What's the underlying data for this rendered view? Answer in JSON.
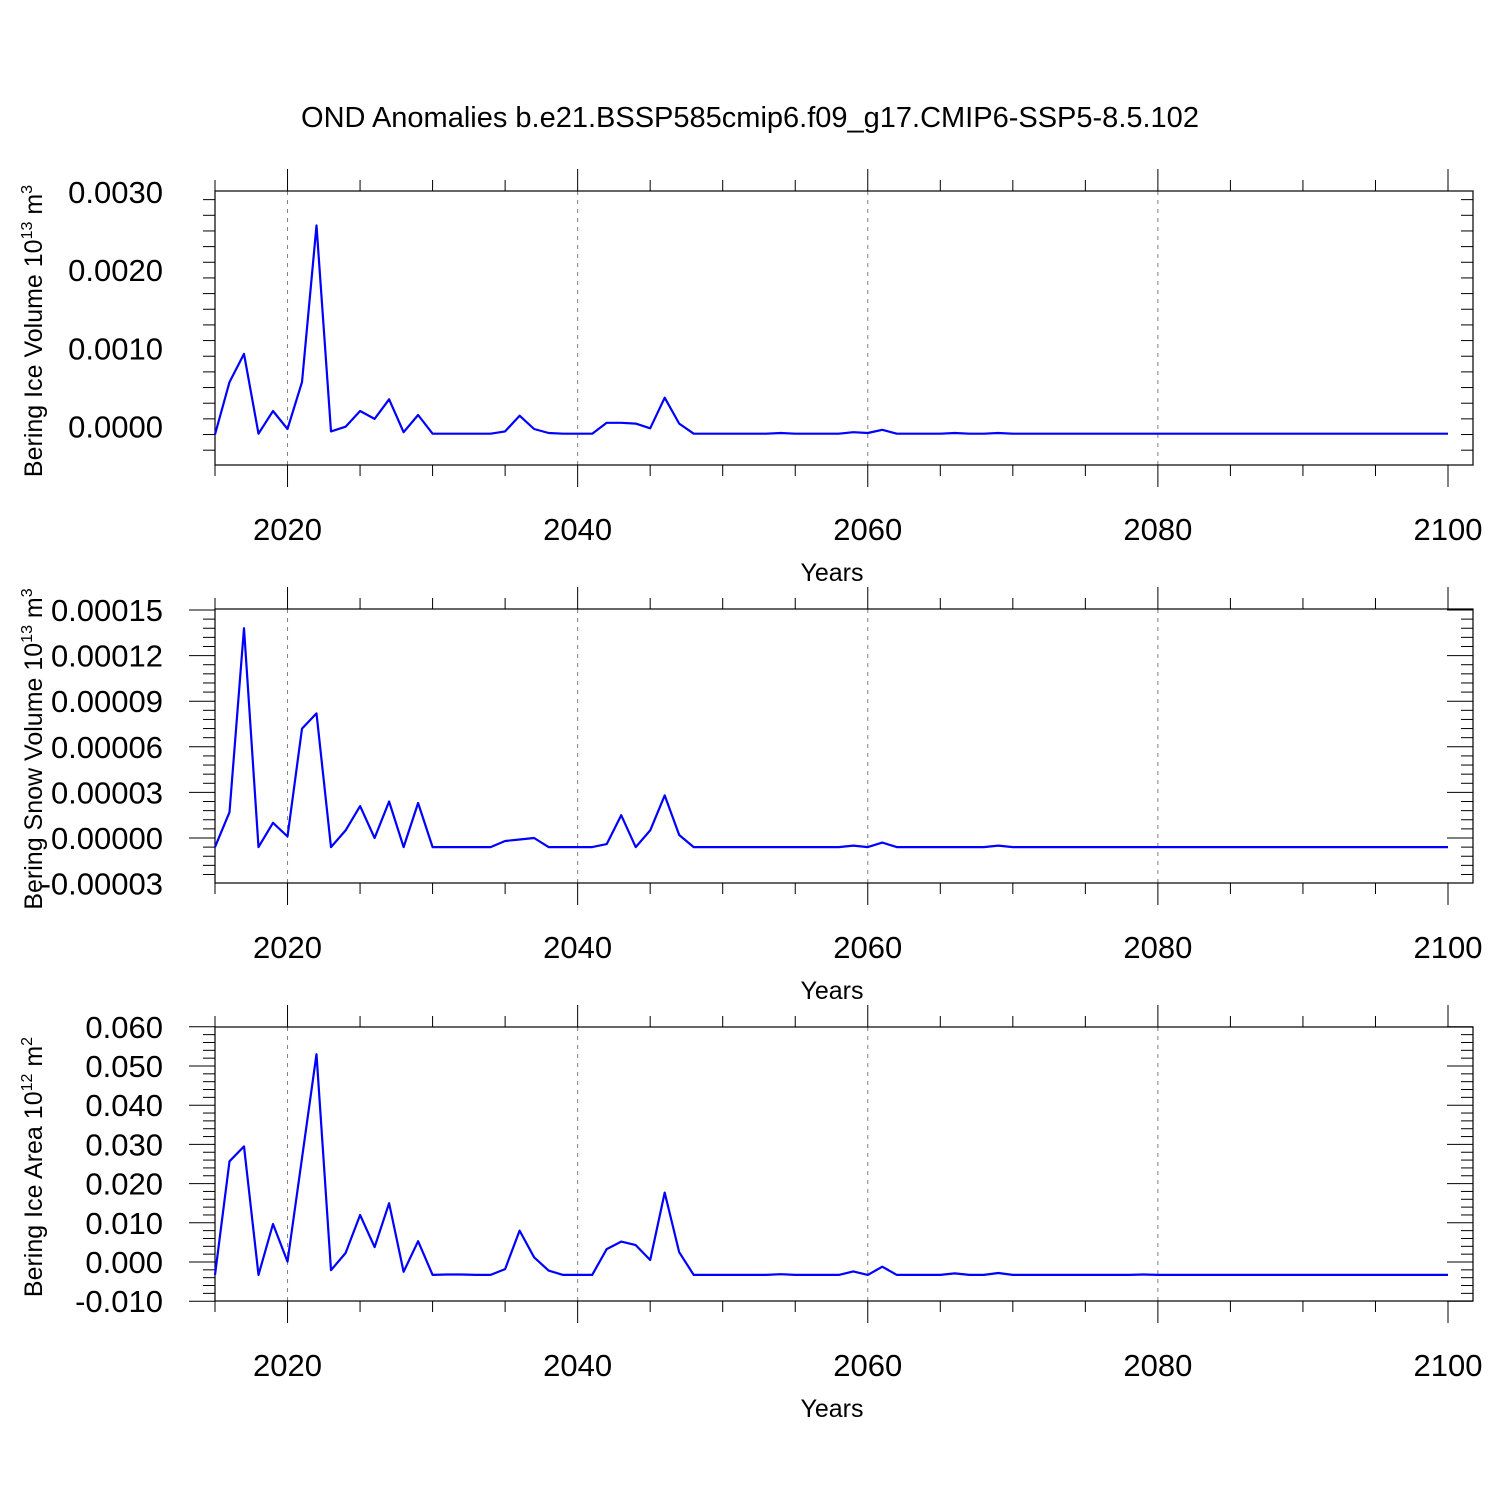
{
  "figure": {
    "title": "OND Anomalies b.e21.BSSP585cmip6.f09_g17.CMIP6-SSP5-8.5.102"
  },
  "colors": {
    "line": "#0000ff",
    "axis": "#000000",
    "grid": "#808080"
  },
  "chart_data": [
    {
      "type": "line",
      "xlabel": "Years",
      "ylabel": "Bering Ice Volume 10",
      "ylabel_sup": "13",
      "ylabel_unit": " m",
      "ylabel_unit_sup": "3",
      "xlim": [
        2015,
        2100
      ],
      "ylim": [
        -0.0005,
        0.003
      ],
      "x_ticks": [
        2020,
        2040,
        2060,
        2080,
        2100
      ],
      "x_tick_labels": [
        "2020",
        "2040",
        "2060",
        "2080",
        "2100"
      ],
      "y_ticks": [
        0.0,
        0.001,
        0.002,
        0.003
      ],
      "y_tick_labels": [
        "0.0000",
        "0.0010",
        "0.0020",
        "0.0030"
      ],
      "grid": "x dashed",
      "series": [
        {
          "x_start": 2015,
          "x_step": 1,
          "values": [
            -0.0001,
            0.00057,
            0.00093,
            -9e-05,
            0.0002,
            -3e-05,
            0.00057,
            0.00257,
            -6e-05,
            0.0,
            0.0002,
            0.0001,
            0.00035,
            -7e-05,
            0.00015,
            -9e-05,
            -9e-05,
            -9e-05,
            -9e-05,
            -9e-05,
            -6e-05,
            0.00014,
            -3e-05,
            -8e-05,
            -9e-05,
            -9e-05,
            -9e-05,
            5e-05,
            5e-05,
            4e-05,
            -2e-05,
            0.00037,
            4e-05,
            -9e-05,
            -9e-05,
            -9e-05,
            -9e-05,
            -9e-05,
            -9e-05,
            -8e-05,
            -9e-05,
            -9e-05,
            -9e-05,
            -9e-05,
            -7e-05,
            -8e-05,
            -4e-05,
            -9e-05,
            -9e-05,
            -9e-05,
            -9e-05,
            -8e-05,
            -9e-05,
            -9e-05,
            -8e-05,
            -9e-05,
            -9e-05,
            -9e-05,
            -9e-05,
            -9e-05,
            -9e-05,
            -9e-05,
            -9e-05,
            -9e-05,
            -9e-05,
            -9e-05,
            -9e-05,
            -9e-05,
            -9e-05,
            -9e-05,
            -9e-05,
            -9e-05,
            -9e-05,
            -9e-05,
            -9e-05,
            -9e-05,
            -9e-05,
            -9e-05,
            -9e-05,
            -9e-05,
            -9e-05,
            -9e-05,
            -9e-05,
            -9e-05,
            -9e-05,
            -9e-05
          ]
        }
      ]
    },
    {
      "type": "line",
      "xlabel": "Years",
      "ylabel": "Bering Snow Volume 10",
      "ylabel_sup": "13",
      "ylabel_unit": " m",
      "ylabel_unit_sup": "3",
      "xlim": [
        2015,
        2100
      ],
      "ylim": [
        -3e-05,
        0.00015
      ],
      "x_ticks": [
        2020,
        2040,
        2060,
        2080,
        2100
      ],
      "x_tick_labels": [
        "2020",
        "2040",
        "2060",
        "2080",
        "2100"
      ],
      "y_ticks": [
        -3e-05,
        0.0,
        3e-05,
        6e-05,
        9e-05,
        0.00012,
        0.00015
      ],
      "y_tick_labels": [
        "-0.00003",
        "0.00000",
        "0.00003",
        "0.00006",
        "0.00009",
        "0.00012",
        "0.00015"
      ],
      "grid": "x dashed",
      "series": [
        {
          "x_start": 2015,
          "x_step": 1,
          "values": [
            -6e-06,
            1.7e-05,
            0.000138,
            -6e-06,
            1e-05,
            1e-06,
            7.2e-05,
            8.2e-05,
            -6e-06,
            5e-06,
            2.1e-05,
            0.0,
            2.4e-05,
            -6e-06,
            2.3e-05,
            -6e-06,
            -6e-06,
            -6e-06,
            -6e-06,
            -6e-06,
            -2e-06,
            -1e-06,
            0.0,
            -6e-06,
            -6e-06,
            -6e-06,
            -6e-06,
            -4e-06,
            1.5e-05,
            -6e-06,
            5e-06,
            2.8e-05,
            2e-06,
            -6e-06,
            -6e-06,
            -6e-06,
            -6e-06,
            -6e-06,
            -6e-06,
            -6e-06,
            -6e-06,
            -6e-06,
            -6e-06,
            -6e-06,
            -5e-06,
            -6e-06,
            -3e-06,
            -6e-06,
            -6e-06,
            -6e-06,
            -6e-06,
            -6e-06,
            -6e-06,
            -6e-06,
            -5e-06,
            -6e-06,
            -6e-06,
            -6e-06,
            -6e-06,
            -6e-06,
            -6e-06,
            -6e-06,
            -6e-06,
            -6e-06,
            -6e-06,
            -6e-06,
            -6e-06,
            -6e-06,
            -6e-06,
            -6e-06,
            -6e-06,
            -6e-06,
            -6e-06,
            -6e-06,
            -6e-06,
            -6e-06,
            -6e-06,
            -6e-06,
            -6e-06,
            -6e-06,
            -6e-06,
            -6e-06,
            -6e-06,
            -6e-06,
            -6e-06,
            -6e-06
          ]
        }
      ]
    },
    {
      "type": "line",
      "xlabel": "Years",
      "ylabel": "Bering Ice Area 10",
      "ylabel_sup": "12",
      "ylabel_unit": " m",
      "ylabel_unit_sup": "2",
      "xlim": [
        2015,
        2100
      ],
      "ylim": [
        -0.01,
        0.06
      ],
      "x_ticks": [
        2020,
        2040,
        2060,
        2080,
        2100
      ],
      "x_tick_labels": [
        "2020",
        "2040",
        "2060",
        "2080",
        "2100"
      ],
      "y_ticks": [
        -0.01,
        0.0,
        0.01,
        0.02,
        0.03,
        0.04,
        0.05,
        0.06
      ],
      "y_tick_labels": [
        "-0.010",
        "0.000",
        "0.010",
        "0.020",
        "0.030",
        "0.040",
        "0.050",
        "0.060"
      ],
      "grid": "x dashed",
      "series": [
        {
          "x_start": 2015,
          "x_step": 1,
          "values": [
            -0.0033,
            0.0257,
            0.0295,
            -0.0033,
            0.0097,
            0.0001,
            0.0265,
            0.053,
            -0.0021,
            0.0023,
            0.012,
            0.0038,
            0.015,
            -0.0025,
            0.0053,
            -0.0033,
            -0.0032,
            -0.0032,
            -0.0033,
            -0.0033,
            -0.0018,
            0.008,
            0.0012,
            -0.0022,
            -0.0033,
            -0.0033,
            -0.0033,
            0.0033,
            0.0052,
            0.0043,
            0.0005,
            0.0177,
            0.0025,
            -0.0033,
            -0.0033,
            -0.0033,
            -0.0033,
            -0.0033,
            -0.0033,
            -0.0031,
            -0.0033,
            -0.0033,
            -0.0033,
            -0.0033,
            -0.0024,
            -0.0033,
            -0.0012,
            -0.0033,
            -0.0033,
            -0.0033,
            -0.0033,
            -0.0029,
            -0.0033,
            -0.0033,
            -0.0028,
            -0.0033,
            -0.0033,
            -0.0033,
            -0.0033,
            -0.0033,
            -0.0033,
            -0.0033,
            -0.0033,
            -0.0033,
            -0.0032,
            -0.0033,
            -0.0033,
            -0.0033,
            -0.0033,
            -0.0033,
            -0.0033,
            -0.0033,
            -0.0033,
            -0.0033,
            -0.0033,
            -0.0033,
            -0.0033,
            -0.0033,
            -0.0033,
            -0.0033,
            -0.0033,
            -0.0033,
            -0.0033,
            -0.0033,
            -0.0033,
            -0.0033
          ]
        }
      ]
    }
  ]
}
